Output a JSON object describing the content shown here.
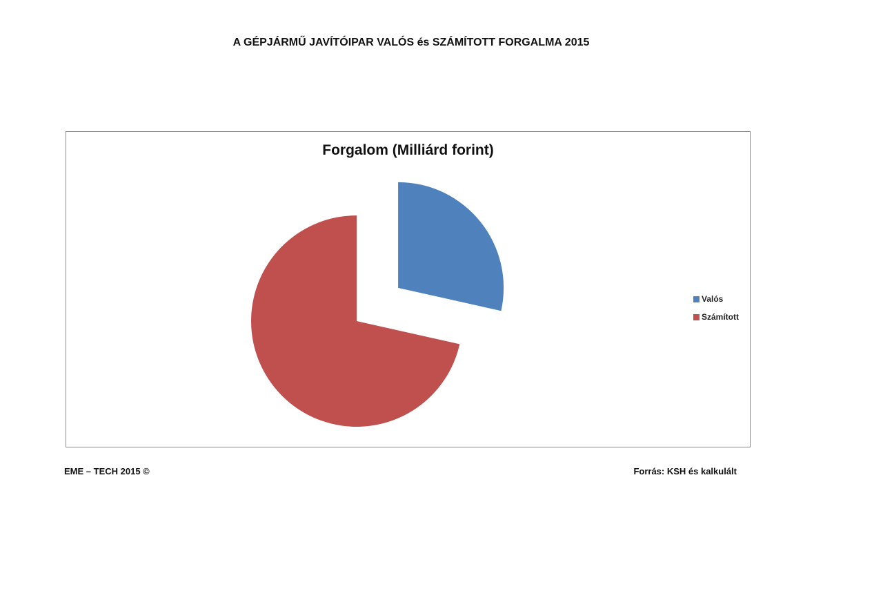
{
  "page_title": "A GÉPJÁRMŰ JAVÍTÓIPAR VALÓS és SZÁMÍTOTT FORGALMA 2015",
  "chart_data": {
    "type": "pie",
    "title": "Forgalom (Milliárd forint)",
    "categories": [
      "Valós",
      "Számított"
    ],
    "values": [
      28.5,
      71.5
    ],
    "unit": "percent share (estimated)",
    "colors": [
      "#4f81bd",
      "#c0504d"
    ],
    "exploded": [
      "Valós"
    ],
    "legend_position": "right"
  },
  "legend": [
    {
      "label": "Valós",
      "color": "#4f81bd"
    },
    {
      "label": "Számított",
      "color": "#c0504d"
    }
  ],
  "footer": {
    "left": "EME – TECH 2015 ©",
    "right": "Forrás: KSH és kalkulált"
  }
}
